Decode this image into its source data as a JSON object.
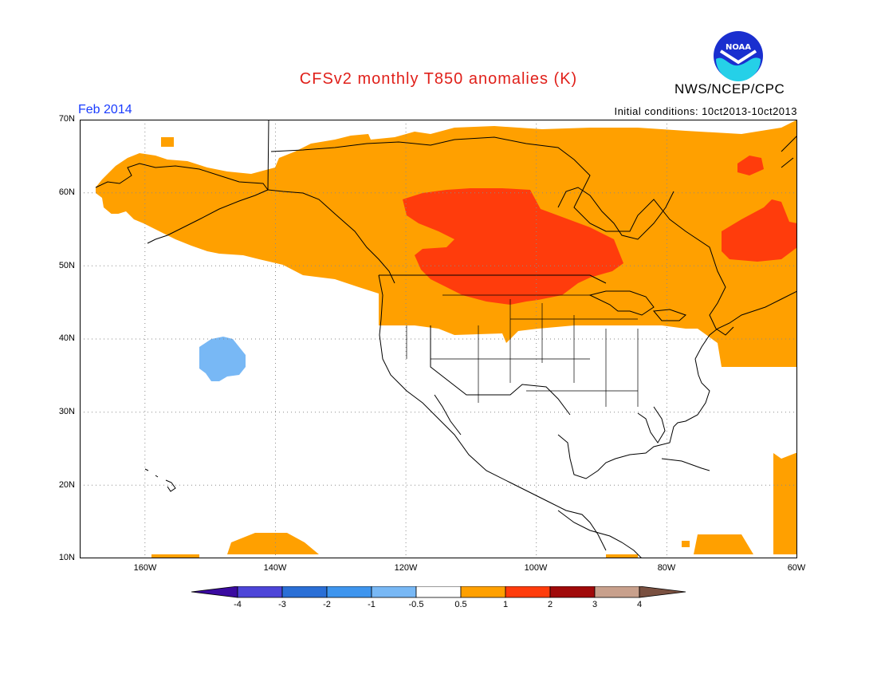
{
  "header": {
    "title": "CFSv2 monthly T850 anomalies (K)",
    "agency": "NWS/NCEP/CPC",
    "logo_text": "NOAA",
    "month": "Feb 2014",
    "initial_conditions": "Initial conditions: 10ct2013-10ct2013"
  },
  "axes": {
    "lat_labels": [
      "70N",
      "60N",
      "50N",
      "40N",
      "30N",
      "20N",
      "10N"
    ],
    "lon_labels": [
      "160W",
      "140W",
      "120W",
      "100W",
      "80W",
      "60W"
    ]
  },
  "colorbar": {
    "labels": [
      "-4",
      "-3",
      "-2",
      "-1",
      "-0.5",
      "0.5",
      "1",
      "2",
      "3",
      "4"
    ],
    "colors": [
      "#3a0aa0",
      "#4d45d8",
      "#2a6fd6",
      "#3e95ee",
      "#78b8f5",
      "#ffffff",
      "#ffa000",
      "#ff3c0c",
      "#a00a0a",
      "#c8a08c",
      "#7a5040"
    ]
  },
  "anomaly_colors": {
    "warm_0_5_to_1": "#ffa000",
    "warm_1_to_2": "#ff3c0c",
    "cool_minus1_to_minus0_5": "#78b8f5"
  }
}
